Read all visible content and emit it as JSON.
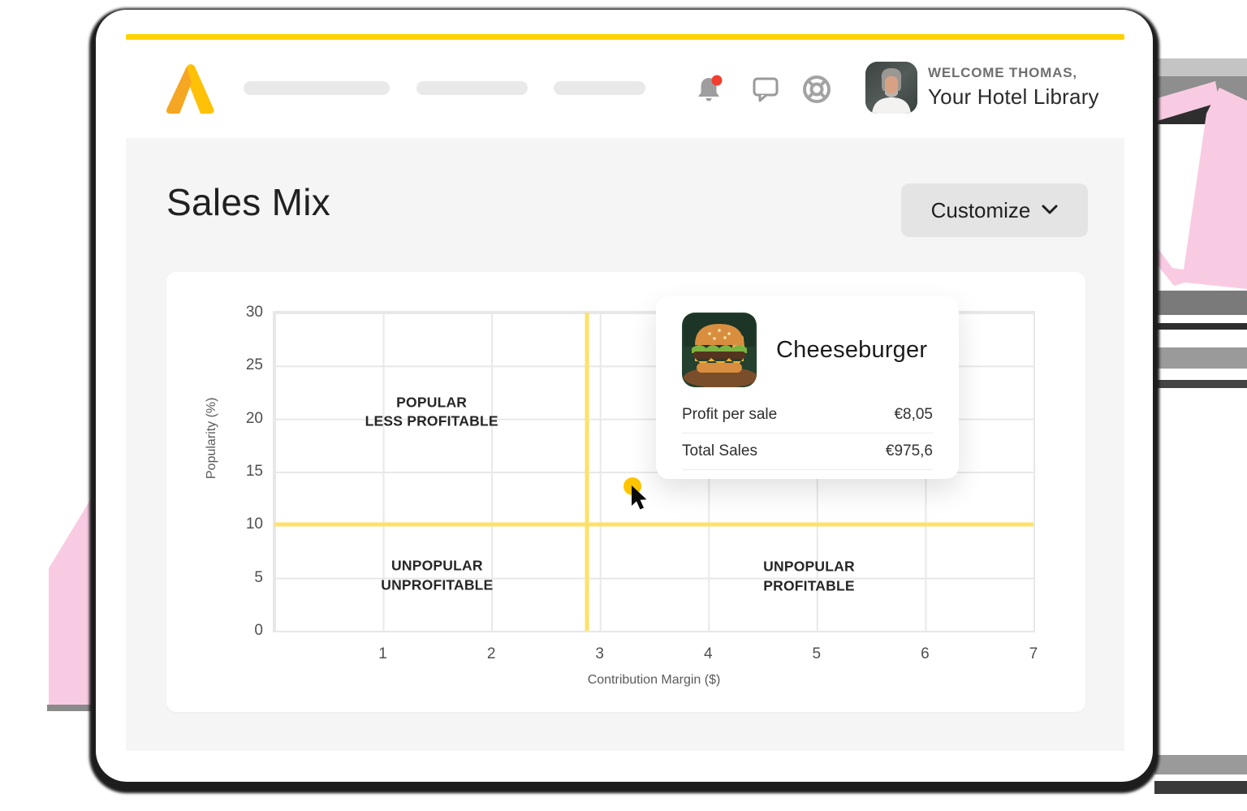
{
  "header": {
    "logo_name": "brand-a-logo",
    "icons": [
      "bell-icon",
      "chat-icon",
      "help-buoy-icon"
    ],
    "welcome_small": "WELCOME THOMAS,",
    "welcome_large": "Your Hotel Library"
  },
  "page": {
    "title": "Sales Mix",
    "customize_label": "Customize"
  },
  "chart_data": {
    "type": "scatter",
    "title": "Sales Mix",
    "xlabel": "Contribution Margin ($)",
    "ylabel": "Popularity (%)",
    "xlim": [
      0,
      7
    ],
    "ylim": [
      0,
      30
    ],
    "x_ticks": [
      1,
      2,
      3,
      4,
      5,
      6,
      7
    ],
    "y_ticks": [
      0,
      5,
      10,
      15,
      20,
      25,
      30
    ],
    "grid": true,
    "threshold_x": 2.88,
    "threshold_y": 10,
    "quadrants": [
      {
        "line1": "POPULAR",
        "line2": "LESS PROFITABLE",
        "x": 1.45,
        "y": 20.6
      },
      {
        "line1": "UNPOPULAR",
        "line2": "UNPROFITABLE",
        "x": 1.5,
        "y": 5.2
      },
      {
        "line1": "UNPOPULAR",
        "line2": "PROFITABLE",
        "x": 4.93,
        "y": 5.1
      }
    ],
    "points": [
      {
        "name": "Cheeseburger",
        "x": 3.3,
        "y": 13.6
      }
    ]
  },
  "tooltip": {
    "title": "Cheeseburger",
    "image_name": "cheeseburger-photo",
    "rows": [
      {
        "label": "Profit per sale",
        "value": "€8,05"
      },
      {
        "label": "Total Sales",
        "value": "€975,6"
      }
    ]
  },
  "colors": {
    "accent_yellow": "#ffd200",
    "crosshair_yellow": "#ffe16a",
    "point_yellow": "#ffc400",
    "decor_pink": "#f9cbe3",
    "section_gray": "#f5f5f5"
  }
}
